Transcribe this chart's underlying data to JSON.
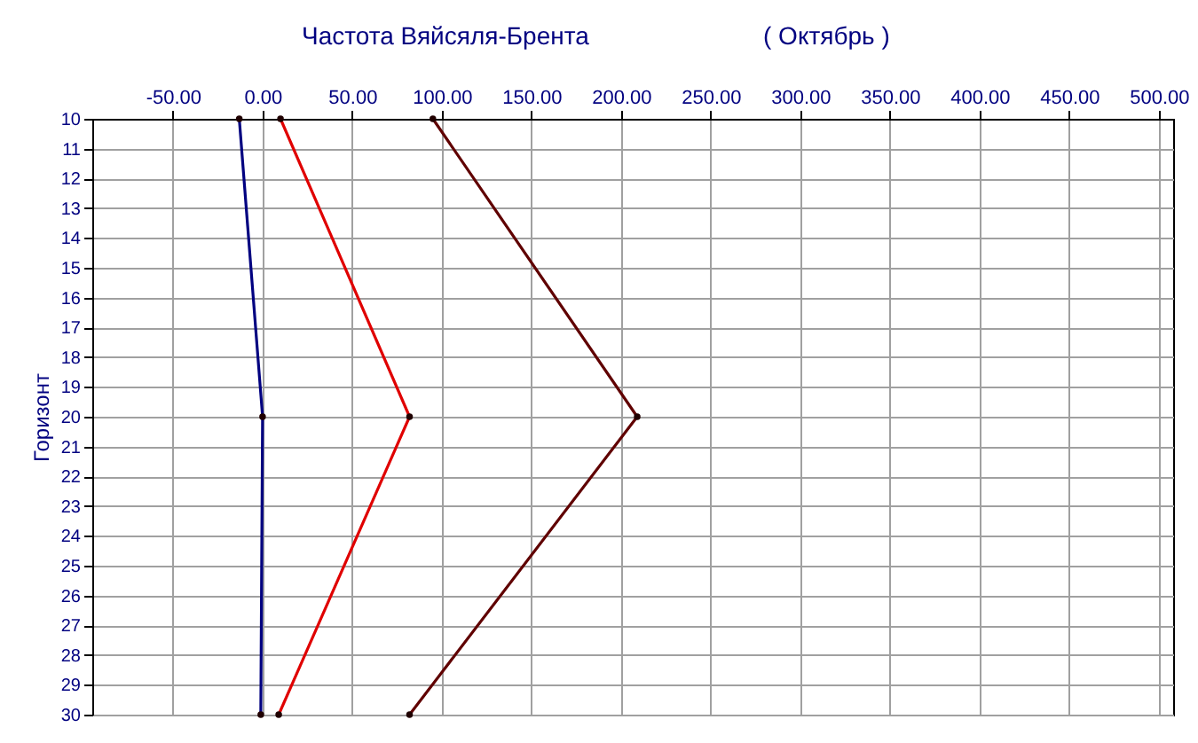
{
  "chart_data": {
    "type": "line",
    "title": "Частота Вяйсяля-Брента",
    "subtitle": "( Октябрь )",
    "ylabel": "Горизонт",
    "xlim": [
      -95,
      508
    ],
    "xticks": [
      {
        "value": -50,
        "label": "-50.00"
      },
      {
        "value": 0,
        "label": "0.00"
      },
      {
        "value": 50,
        "label": "50.00"
      },
      {
        "value": 100,
        "label": "100.00"
      },
      {
        "value": 150,
        "label": "150.00"
      },
      {
        "value": 200,
        "label": "200.00"
      },
      {
        "value": 250,
        "label": "250.00"
      },
      {
        "value": 300,
        "label": "300.00"
      },
      {
        "value": 350,
        "label": "350.00"
      },
      {
        "value": 400,
        "label": "400.00"
      },
      {
        "value": 450,
        "label": "450.00"
      },
      {
        "value": 500,
        "label": "500.00"
      }
    ],
    "ylim": [
      30,
      10
    ],
    "yticks": [
      10,
      11,
      12,
      13,
      14,
      15,
      16,
      17,
      18,
      19,
      20,
      21,
      22,
      23,
      24,
      25,
      26,
      27,
      28,
      29,
      30
    ],
    "grid": true,
    "marker": "circle",
    "line_style": "solid",
    "series": [
      {
        "color": "#000080",
        "x": [
          -13,
          0,
          -1
        ],
        "values": [
          10,
          20,
          30
        ]
      },
      {
        "color": "#e00000",
        "x": [
          10,
          82,
          9
        ],
        "values": [
          10,
          20,
          30
        ]
      },
      {
        "color": "#600000",
        "x": [
          95,
          209,
          82
        ],
        "values": [
          10,
          20,
          30
        ]
      }
    ]
  }
}
